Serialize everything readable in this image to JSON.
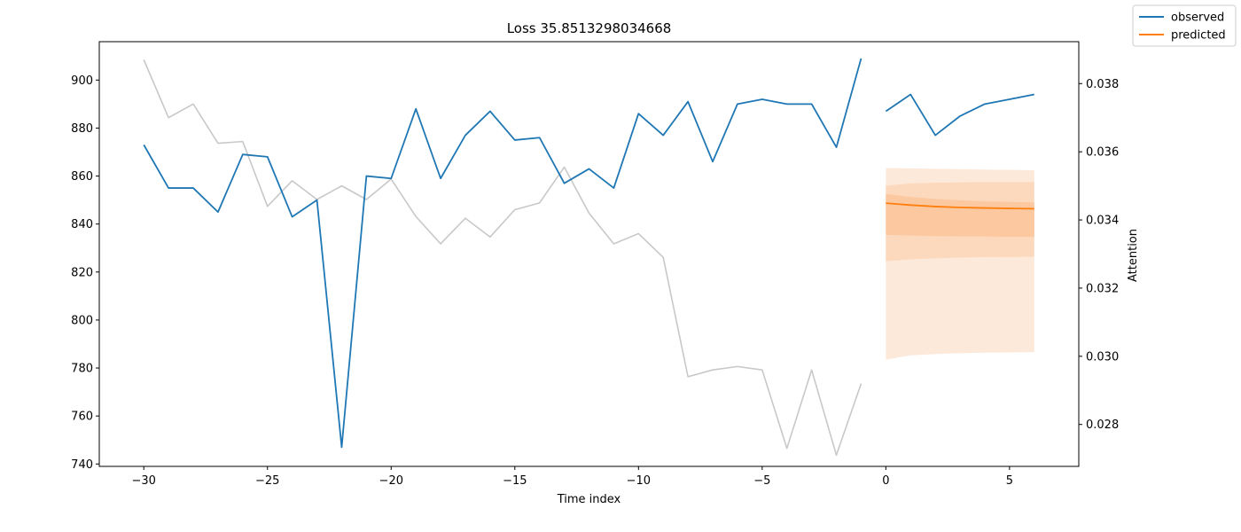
{
  "chart_data": {
    "type": "line",
    "title": "Loss 35.8513298034668",
    "xlabel": "Time index",
    "ylabel": "",
    "y2label": "Attention",
    "xlim": [
      -31.8,
      7.8
    ],
    "ylim": [
      739,
      916
    ],
    "y2lim": [
      0.02677,
      0.03923
    ],
    "xticks": [
      -30,
      -25,
      -20,
      -15,
      -10,
      -5,
      0,
      5
    ],
    "xtick_labels": [
      "−30",
      "−25",
      "−20",
      "−15",
      "−10",
      "−5",
      "0",
      "5"
    ],
    "yticks": [
      740,
      760,
      780,
      800,
      820,
      840,
      860,
      880,
      900
    ],
    "y2ticks": [
      0.028,
      0.03,
      0.032,
      0.034,
      0.036,
      0.038
    ],
    "y2tick_labels": [
      "0.028",
      "0.030",
      "0.032",
      "0.034",
      "0.036",
      "0.038"
    ],
    "grid": false,
    "legend_position": "top-right (outside plot)",
    "colors": {
      "observed": "#1f77b4",
      "predicted": "#ff7f0e",
      "attention": "#c8c8c8",
      "band_outer": "#fde9da",
      "band_mid": "#fcd9bd",
      "band_inner": "#fcc8a0"
    },
    "series": [
      {
        "name": "observed",
        "axis": "left",
        "x": [
          -30,
          -29,
          -28,
          -27,
          -26,
          -25,
          -24,
          -23,
          -22,
          -21,
          -20,
          -19,
          -18,
          -17,
          -16,
          -15,
          -14,
          -13,
          -12,
          -11,
          -10,
          -9,
          -8,
          -7,
          -6,
          -5,
          -4,
          -3,
          -2,
          -1
        ],
        "y": [
          873,
          855,
          855,
          845,
          869,
          868,
          843,
          850,
          747,
          860,
          859,
          888,
          859,
          877,
          887,
          875,
          876,
          857,
          863,
          855,
          886,
          877,
          891,
          866,
          890,
          892,
          890,
          890,
          872,
          909
        ]
      },
      {
        "name": "observed",
        "axis": "left",
        "x": [
          0,
          1,
          2,
          3,
          4,
          5,
          6
        ],
        "y": [
          887,
          894,
          877,
          885,
          890,
          892,
          894
        ]
      },
      {
        "name": "predicted",
        "axis": "left",
        "x": [
          0,
          1,
          2,
          3,
          4,
          5,
          6
        ],
        "y": [
          848.7,
          847.9,
          847.3,
          846.9,
          846.7,
          846.5,
          846.4
        ]
      },
      {
        "axis": "right",
        "x": [
          -30,
          -29,
          -28,
          -27,
          -26,
          -25,
          -24,
          -23,
          -22,
          -21,
          -20,
          -19,
          -18,
          -17,
          -16,
          -15,
          -14,
          -13,
          -12,
          -11,
          -10,
          -9,
          -8,
          -7,
          -6,
          -5,
          -4,
          -3,
          -2,
          -1
        ],
        "y": [
          0.0387,
          0.037,
          0.0374,
          0.03625,
          0.0363,
          0.0344,
          0.03515,
          0.0346,
          0.035,
          0.0346,
          0.0352,
          0.0341,
          0.0333,
          0.03405,
          0.0335,
          0.0343,
          0.0345,
          0.03555,
          0.0342,
          0.0333,
          0.0336,
          0.0329,
          0.0294,
          0.0296,
          0.0297,
          0.0296,
          0.0273,
          0.0296,
          0.0271,
          0.0292
        ]
      }
    ],
    "quantile_bands": [
      {
        "x": [
          0,
          1,
          2,
          3,
          4,
          5,
          6
        ],
        "lower": [
          783.5,
          785.3,
          785.8,
          786.2,
          786.4,
          786.5,
          786.6
        ],
        "upper": [
          863.3,
          863.2,
          863.0,
          862.9,
          862.7,
          862.6,
          862.4
        ]
      },
      {
        "x": [
          0,
          1,
          2,
          3,
          4,
          5,
          6
        ],
        "lower": [
          824.5,
          825.3,
          825.7,
          826.0,
          826.2,
          826.3,
          826.4
        ],
        "upper": [
          856.0,
          856.9,
          857.2,
          857.4,
          857.5,
          857.5,
          857.5
        ]
      },
      {
        "x": [
          0,
          1,
          2,
          3,
          4,
          5,
          6
        ],
        "lower": [
          835.5,
          835.2,
          835.0,
          834.9,
          834.8,
          834.7,
          834.7
        ],
        "upper": [
          852.5,
          851.3,
          850.5,
          849.9,
          849.5,
          849.2,
          849.0
        ]
      }
    ]
  }
}
